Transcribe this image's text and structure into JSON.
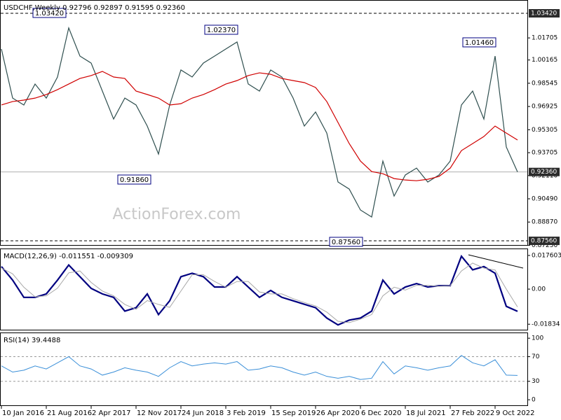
{
  "chart_data": [
    {
      "type": "line",
      "title": "USDCHF,Weekly  0.92796 0.92897 0.91595 0.92360",
      "watermark": "ActionForex.com",
      "categories": [
        "10 Jan 2016",
        null,
        null,
        null,
        "21 Aug 2016",
        null,
        null,
        null,
        "2 Apr 2017",
        null,
        null,
        null,
        "12 Nov 2017",
        null,
        null,
        null,
        "24 Jun 2018",
        null,
        null,
        null,
        "3 Feb 2019",
        null,
        null,
        null,
        "15 Sep 2019",
        null,
        null,
        null,
        "26 Apr 2020",
        null,
        null,
        null,
        "6 Dec 2020",
        null,
        null,
        null,
        "18 Jul 2021",
        null,
        null,
        null,
        "27 Feb 2022",
        null,
        null,
        null,
        "9 Oct 2022",
        null,
        null
      ],
      "series": [
        {
          "color": "#2f4f4f",
          "values": [
            1.0093,
            0.9751,
            0.9703,
            0.9849,
            0.9751,
            0.9898,
            1.024,
            1.0044,
            0.9995,
            0.98,
            0.9605,
            0.9751,
            0.9703,
            0.9556,
            0.9361,
            0.9703,
            0.9947,
            0.9898,
            0.9995,
            1.0044,
            1.0093,
            1.0142,
            0.9849,
            0.98,
            0.9947,
            0.9898,
            0.9751,
            0.9556,
            0.9654,
            0.9507,
            0.9166,
            0.9117,
            0.8971,
            0.8922,
            0.9312,
            0.9068,
            0.9215,
            0.9263,
            0.9166,
            0.9215,
            0.9312,
            0.9703,
            0.98,
            0.9605,
            1.0044,
            0.941,
            0.9236
          ]
        },
        {
          "color": "#d00000",
          "values": [
            0.9703,
            0.9727,
            0.9737,
            0.9751,
            0.9776,
            0.981,
            0.9849,
            0.9888,
            0.9908,
            0.9937,
            0.9898,
            0.9888,
            0.98,
            0.9776,
            0.9751,
            0.9703,
            0.9712,
            0.9751,
            0.9776,
            0.981,
            0.9849,
            0.9873,
            0.9908,
            0.9927,
            0.9917,
            0.9888,
            0.9873,
            0.9859,
            0.9825,
            0.9727,
            0.9581,
            0.9434,
            0.9312,
            0.9239,
            0.9224,
            0.919,
            0.918,
            0.9175,
            0.9185,
            0.9205,
            0.9263,
            0.9385,
            0.9434,
            0.9483,
            0.9556,
            0.9507,
            0.9459
          ]
        }
      ],
      "ylim": [
        0.8727,
        1.0425
      ],
      "yticks": [
        1.01705,
        1.00165,
        0.98545,
        0.96925,
        0.95305,
        0.93705,
        {
          "value": 0.9211,
          "label": "0.92110"
        },
        {
          "value": 0.9049,
          "label": "0.90490"
        },
        {
          "value": 0.8887,
          "label": "0.88870"
        },
        {
          "value": 0.8725,
          "label": "0.87250"
        }
      ],
      "levels": [
        {
          "value": 1.0342,
          "label": "1.03420",
          "style": "dashed"
        },
        {
          "value": 0.9236,
          "label": "0.92360",
          "style": "solid"
        },
        {
          "value": 0.8756,
          "label": "0.87560",
          "style": "dashed"
        }
      ],
      "annotations": [
        {
          "value": 1.0342,
          "label": "1.03420"
        },
        {
          "value": 1.0237,
          "label": "1.02370"
        },
        {
          "value": 0.9186,
          "label": "0.91860"
        },
        {
          "value": 0.8756,
          "label": "0.87560"
        },
        {
          "value": 1.0146,
          "label": "1.01460"
        }
      ]
    },
    {
      "type": "line",
      "title": "MACD(12,26,9) -0.011551 -0.009309",
      "series": [
        {
          "color": "#000080",
          "width": 2.2,
          "values": [
            0.0118,
            0.0047,
            -0.0043,
            -0.0043,
            -0.0025,
            0.0047,
            0.0126,
            0.0065,
            0.0004,
            -0.0025,
            -0.0043,
            -0.0115,
            -0.0097,
            -0.0025,
            -0.0133,
            -0.0061,
            0.0065,
            0.0083,
            0.0065,
            0.0011,
            0.0011,
            0.0065,
            0.0011,
            -0.0043,
            -0.0007,
            -0.0043,
            -0.0061,
            -0.0079,
            -0.0097,
            -0.0151,
            -0.0187,
            -0.0162,
            -0.0151,
            -0.0115,
            0.0047,
            -0.0025,
            0.0011,
            0.0029,
            0.0011,
            0.0018,
            0.0018,
            0.0172,
            0.0101,
            0.0118,
            0.0083,
            -0.009,
            -0.0116
          ]
        },
        {
          "color": "#a8a8a8",
          "width": 1,
          "values": [
            0.011,
            0.008,
            0.001,
            -0.004,
            -0.0035,
            0.0005,
            0.0085,
            0.0095,
            0.0035,
            -0.001,
            -0.0035,
            -0.008,
            -0.0105,
            -0.006,
            -0.008,
            -0.0095,
            -0.001,
            0.0075,
            0.0075,
            0.004,
            0.001,
            0.004,
            0.004,
            -0.0015,
            -0.0025,
            -0.0025,
            -0.005,
            -0.007,
            -0.0088,
            -0.012,
            -0.0168,
            -0.0175,
            -0.0157,
            -0.0133,
            -0.0035,
            0.001,
            -0.0005,
            0.002,
            0.002,
            0.0015,
            0.0018,
            0.0095,
            0.0136,
            0.011,
            0.01,
            0.0,
            -0.0093
          ]
        }
      ],
      "ylim": [
        -0.0212,
        0.0205
      ],
      "yticks": [
        0.017603,
        {
          "value": 0,
          "label": "0.00"
        },
        -0.01834
      ]
    },
    {
      "type": "line",
      "title": "RSI(14) 39.4488",
      "series": [
        {
          "color": "#3a8fd8",
          "width": 1,
          "values": [
            55,
            45,
            48,
            55,
            50,
            60,
            70,
            55,
            50,
            40,
            45,
            52,
            48,
            45,
            38,
            52,
            62,
            55,
            58,
            60,
            58,
            62,
            48,
            50,
            55,
            52,
            45,
            40,
            45,
            38,
            35,
            38,
            33,
            35,
            62,
            42,
            55,
            52,
            48,
            52,
            55,
            72,
            60,
            55,
            65,
            40,
            39.4488
          ]
        }
      ],
      "ylim": [
        -9,
        107
      ],
      "yticks": [
        100,
        70,
        30,
        0
      ],
      "levels": [
        70,
        30
      ]
    }
  ]
}
